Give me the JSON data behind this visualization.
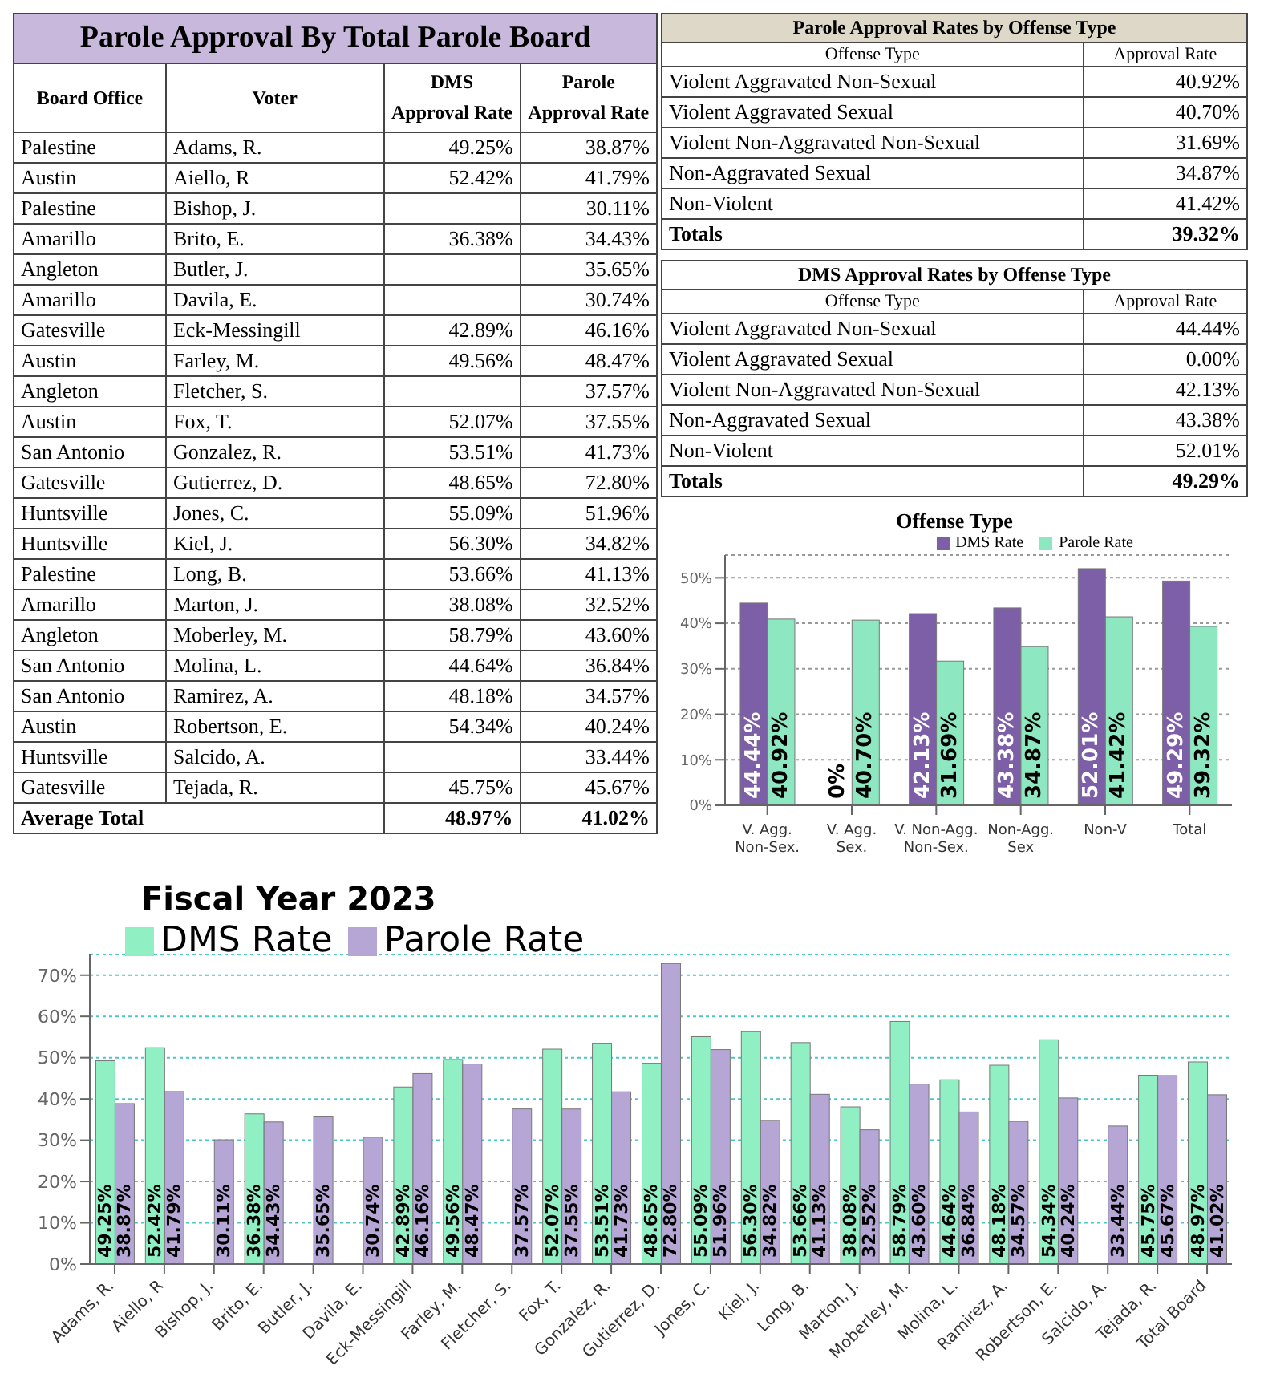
{
  "chart_data": [
    {
      "type": "other",
      "title": "Parole Approval  By Total Parole Board",
      "categories": [
        "Board Office",
        "Voter",
        "DMS Approval Rate",
        "Parole Approval Rate"
      ],
      "cell_labels": [
        [
          "Palestine",
          "Adams, R.",
          "49.25%",
          "38.87%"
        ],
        [
          "Austin",
          "Aiello, R",
          "52.42%",
          "41.79%"
        ],
        [
          "Palestine",
          "Bishop, J.",
          null,
          "30.11%"
        ],
        [
          "Amarillo",
          "Brito, E.",
          "36.38%",
          "34.43%"
        ],
        [
          "Angleton",
          "Butler, J.",
          null,
          "35.65%"
        ],
        [
          "Amarillo",
          "Davila, E.",
          null,
          "30.74%"
        ],
        [
          "Gatesville",
          "Eck-Messingill",
          "42.89%",
          "46.16%"
        ],
        [
          "Austin",
          "Farley, M.",
          "49.56%",
          "48.47%"
        ],
        [
          "Angleton",
          "Fletcher, S.",
          null,
          "37.57%"
        ],
        [
          "Austin",
          "Fox, T.",
          "52.07%",
          "37.55%"
        ],
        [
          "San Antonio",
          "Gonzalez, R.",
          "53.51%",
          "41.73%"
        ],
        [
          "Gatesville",
          "Gutierrez, D.",
          "48.65%",
          "72.80%"
        ],
        [
          "Huntsville",
          "Jones, C.",
          "55.09%",
          "51.96%"
        ],
        [
          "Huntsville",
          "Kiel, J.",
          "56.30%",
          "34.82%"
        ],
        [
          "Palestine",
          "Long, B.",
          "53.66%",
          "41.13%"
        ],
        [
          "Amarillo",
          "Marton, J.",
          "38.08%",
          "32.52%"
        ],
        [
          "Angleton",
          "Moberley, M.",
          "58.79%",
          "43.60%"
        ],
        [
          "San Antonio",
          "Molina, L.",
          "44.64%",
          "36.84%"
        ],
        [
          "San Antonio",
          "Ramirez, A.",
          "48.18%",
          "34.57%"
        ],
        [
          "Austin",
          "Robertson, E.",
          "54.34%",
          "40.24%"
        ],
        [
          "Huntsville",
          "Salcido, A.",
          null,
          "33.44%"
        ],
        [
          "Gatesville",
          "Tejada, R.",
          "45.75%",
          "45.67%"
        ],
        [
          "Average Total",
          null,
          "48.97%",
          "41.02%"
        ]
      ]
    },
    {
      "type": "other",
      "title": "Parole Approval Rates by Offense Type",
      "categories": [
        "Offense Type",
        "Approval Rate"
      ],
      "cell_labels": [
        [
          "Violent Aggravated Non-Sexual",
          "40.92%"
        ],
        [
          "Violent Aggravated Sexual",
          "40.70%"
        ],
        [
          "Violent Non-Aggravated Non-Sexual",
          "31.69%"
        ],
        [
          "Non-Aggravated Sexual",
          "34.87%"
        ],
        [
          "Non-Violent",
          "41.42%"
        ],
        [
          "Totals",
          "39.32%"
        ]
      ]
    },
    {
      "type": "other",
      "title": "DMS Approval Rates by Offense Type",
      "categories": [
        "Offense Type",
        "Approval Rate"
      ],
      "cell_labels": [
        [
          "Violent Aggravated Non-Sexual",
          "44.44%"
        ],
        [
          "Violent Aggravated Sexual",
          "0.00%"
        ],
        [
          "Violent Non-Aggravated Non-Sexual",
          "42.13%"
        ],
        [
          "Non-Aggravated Sexual",
          "43.38%"
        ],
        [
          "Non-Violent",
          "52.01%"
        ],
        [
          "Totals",
          "49.29%"
        ]
      ]
    },
    {
      "type": "bar",
      "title": "Offense Type",
      "categories": [
        "V. Agg. Non-Sex.",
        "V. Agg. Sex.",
        "V. Non-Agg. Non-Sex.",
        "Non-Agg. Sex",
        "Non-V",
        "Total"
      ],
      "series": [
        {
          "name": "DMS Rate",
          "color": "#7d5fa8",
          "values": [
            44.44,
            0,
            42.13,
            43.38,
            52.01,
            49.29
          ],
          "value_labels": [
            "44.44%",
            "0%",
            "42.13%",
            "43.38%",
            "52.01%",
            "49.29%"
          ]
        },
        {
          "name": "Parole Rate",
          "color": "#8de8c2",
          "values": [
            40.92,
            40.7,
            31.69,
            34.87,
            41.42,
            39.32
          ],
          "value_labels": [
            "40.92%",
            "40.70%",
            "31.69%",
            "34.87%",
            "41.42%",
            "39.32%"
          ]
        }
      ],
      "ylim": [
        0,
        55
      ],
      "yticks": [
        {
          "value": 0,
          "label": "0%"
        },
        {
          "value": 10,
          "label": "10%"
        },
        {
          "value": 20,
          "label": "20%"
        },
        {
          "value": 30,
          "label": "30%"
        },
        {
          "value": 40,
          "label": "40%"
        },
        {
          "value": 50,
          "label": "50%"
        }
      ],
      "grid": "y",
      "legend": "top"
    },
    {
      "type": "bar",
      "title": "Fiscal Year 2023",
      "categories": [
        "Adams, R.",
        "Aiello, R",
        "Bishop, J.",
        "Brito, E.",
        "Butler, J.",
        "Davila, E.",
        "Eck-Messingill",
        "Farley, M.",
        "Fletcher, S.",
        "Fox, T.",
        "Gonzalez, R.",
        "Gutierrez, D.",
        "Jones, C.",
        "Kiel, J.",
        "Long, B.",
        "Marton, J.",
        "Moberley, M.",
        "Molina, L.",
        "Ramirez, A.",
        "Robertson, E.",
        "Salcido, A.",
        "Tejada, R.",
        "Total Board"
      ],
      "series": [
        {
          "name": "DMS Rate",
          "color": "#90f0c4",
          "values": [
            49.25,
            52.42,
            null,
            36.38,
            null,
            null,
            42.89,
            49.56,
            null,
            52.07,
            53.51,
            48.65,
            55.09,
            56.3,
            53.66,
            38.08,
            58.79,
            44.64,
            48.18,
            54.34,
            null,
            45.75,
            48.97
          ],
          "value_labels": [
            "49.25%",
            "52.42%",
            null,
            "36.38%",
            null,
            null,
            "42.89%",
            "49.56%",
            null,
            "52.07%",
            "53.51%",
            "48.65%",
            "55.09%",
            "56.30%",
            "53.66%",
            "38.08%",
            "58.79%",
            "44.64%",
            "48.18%",
            "54.34%",
            null,
            "45.75%",
            "48.97%"
          ]
        },
        {
          "name": "Parole Rate",
          "color": "#b5a6d6",
          "values": [
            38.87,
            41.79,
            30.11,
            34.43,
            35.65,
            30.74,
            46.16,
            48.47,
            37.57,
            37.55,
            41.73,
            72.8,
            51.96,
            34.82,
            41.13,
            32.52,
            43.6,
            36.84,
            34.57,
            40.24,
            33.44,
            45.67,
            41.02
          ],
          "value_labels": [
            "38.87%",
            "41.79%",
            "30.11%",
            "34.43%",
            "35.65%",
            "30.74%",
            "46.16%",
            "48.47%",
            "37.57%",
            "37.55%",
            "41.73%",
            "72.80%",
            "51.96%",
            "34.82%",
            "41.13%",
            "32.52%",
            "43.60%",
            "36.84%",
            "34.57%",
            "40.24%",
            "33.44%",
            "45.67%",
            "41.02%"
          ]
        }
      ],
      "ylim": [
        0,
        75
      ],
      "yticks": [
        {
          "value": 0,
          "label": "0%"
        },
        {
          "value": 10,
          "label": "10%"
        },
        {
          "value": 20,
          "label": "20%"
        },
        {
          "value": 30,
          "label": "30%"
        },
        {
          "value": 40,
          "label": "40%"
        },
        {
          "value": 50,
          "label": "50%"
        },
        {
          "value": 60,
          "label": "60%"
        },
        {
          "value": 70,
          "label": "70%"
        }
      ],
      "grid": "y",
      "legend": "top left"
    }
  ]
}
